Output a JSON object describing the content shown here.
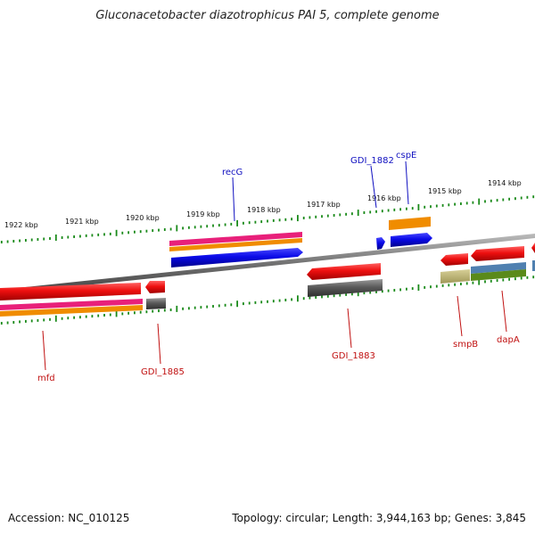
{
  "title": "Gluconacetobacter diazotrophicus PAI 5, complete genome",
  "footer": {
    "accession": "Accession: NC_010125",
    "summary": "Topology: circular; Length: 3,944,163 bp; Genes: 3,845"
  },
  "scale_labels": [
    "1922 kbp",
    "1921 kbp",
    "1920 kbp",
    "1919 kbp",
    "1918 kbp",
    "1917 kbp",
    "1916 kbp",
    "1915 kbp",
    "1914 kbp"
  ],
  "gene_labels": {
    "recG": "recG",
    "GDI_1882": "GDI_1882",
    "cspE": "cspE",
    "mfd": "mfd",
    "GDI_1885": "GDI_1885",
    "GDI_1883": "GDI_1883",
    "smpB": "smpB",
    "dapA": "dapA"
  },
  "colors": {
    "red": "#e81010",
    "blue": "#0a0ae8",
    "orange": "#f08c00",
    "magenta": "#e8207a",
    "gray": "#5a5a5a",
    "olive": "#b8b070",
    "steel": "#5080b0",
    "green": "#5a8a1a",
    "tick": "#1a8a1a",
    "label_forward": "#1010c0",
    "label_reverse": "#c01010"
  }
}
